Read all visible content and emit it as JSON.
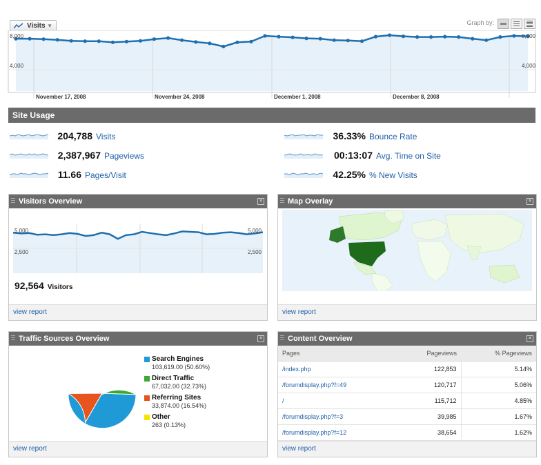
{
  "graph": {
    "metric_label": "Visits",
    "graph_by_label": "Graph by:",
    "y_ticks": [
      "8,000",
      "4,000"
    ],
    "x_labels": [
      "November 17, 2008",
      "November 24, 2008",
      "December 1, 2008",
      "December 8, 2008"
    ],
    "values": [
      7400,
      7400,
      7350,
      7250,
      7100,
      7050,
      7050,
      6900,
      7000,
      7100,
      7350,
      7500,
      7200,
      6950,
      6750,
      6300,
      6900,
      7000,
      7800,
      7700,
      7600,
      7450,
      7400,
      7200,
      7150,
      7050,
      7700,
      7900,
      7750,
      7650,
      7650,
      7700,
      7650,
      7400,
      7200,
      7650,
      7800,
      7750
    ],
    "y_max": 8000,
    "colors": {
      "line": "#1f6fae",
      "fill": "#e6f1fa"
    }
  },
  "site_usage": {
    "title": "Site Usage",
    "metrics": [
      {
        "value": "204,788",
        "name": "Visits"
      },
      {
        "value": "2,387,967",
        "name": "Pageviews"
      },
      {
        "value": "11.66",
        "name": "Pages/Visit"
      },
      {
        "value": "36.33%",
        "name": "Bounce Rate"
      },
      {
        "value": "00:13:07",
        "name": "Avg. Time on Site"
      },
      {
        "value": "42.25%",
        "name": "% New Visits"
      }
    ]
  },
  "visitors_overview": {
    "title": "Visitors Overview",
    "y_ticks": [
      "5,000",
      "2,500"
    ],
    "values": [
      4900,
      4800,
      4850,
      4650,
      4700,
      4600,
      4700,
      4850,
      4750,
      4500,
      4600,
      4900,
      4700,
      4150,
      4600,
      4700,
      5000,
      4850,
      4700,
      4600,
      4800,
      5050,
      5000,
      4950,
      4700,
      4750,
      4900,
      4950,
      4850,
      4700,
      4800,
      4950
    ],
    "y_max": 6000,
    "total": "92,564",
    "total_label": "Visitors",
    "footer": "view report"
  },
  "map_overlay": {
    "title": "Map Overlay",
    "footer": "view report"
  },
  "traffic_sources": {
    "title": "Traffic Sources Overview",
    "footer": "view report",
    "chart_data": {
      "type": "pie",
      "title": "Traffic Sources Overview",
      "slices": [
        {
          "name": "Search Engines",
          "value": 103619,
          "label": "103,619.00 (50.60%)",
          "color": "#1f9ad6"
        },
        {
          "name": "Direct Traffic",
          "value": 67032,
          "label": "67,032.00 (32.73%)",
          "color": "#3aaa35"
        },
        {
          "name": "Referring Sites",
          "value": 33874,
          "label": "33,874.00 (16.54%)",
          "color": "#e8541e"
        },
        {
          "name": "Other",
          "value": 263,
          "label": "263 (0.13%)",
          "color": "#f2e600"
        }
      ]
    }
  },
  "content_overview": {
    "title": "Content Overview",
    "footer": "view report",
    "headers": [
      "Pages",
      "Pageviews",
      "% Pageviews"
    ],
    "rows": [
      [
        "/index.php",
        "122,853",
        "5.14%"
      ],
      [
        "/forumdisplay.php?f=49",
        "120,717",
        "5.06%"
      ],
      [
        "/",
        "115,712",
        "4.85%"
      ],
      [
        "/forumdisplay.php?f=3",
        "39,985",
        "1.67%"
      ],
      [
        "/forumdisplay.php?f=12",
        "38,654",
        "1.62%"
      ]
    ]
  }
}
